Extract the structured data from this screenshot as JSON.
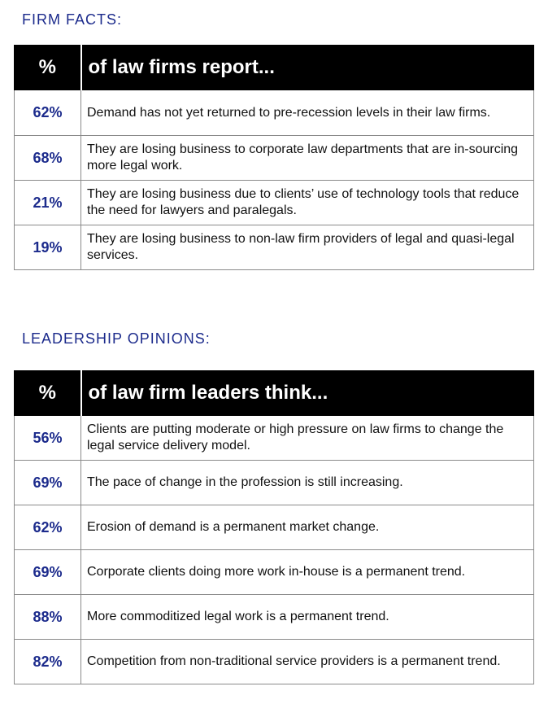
{
  "firm_facts": {
    "heading": "FIRM FACTS:",
    "col_pct": "%",
    "col_text": "of law firms report...",
    "rows": [
      {
        "pct": "62%",
        "text": "Demand has not yet returned to pre-recession levels in their law firms."
      },
      {
        "pct": "68%",
        "text": "They are losing business to corporate law departments that are in-sourcing more legal work."
      },
      {
        "pct": "21%",
        "text": "They are losing business due to clients’ use of technology tools that reduce the need for lawyers and paralegals."
      },
      {
        "pct": "19%",
        "text": "They are losing business to non-law firm providers of legal and quasi-legal services."
      }
    ]
  },
  "leadership_opinions": {
    "heading": "LEADERSHIP OPINIONS:",
    "col_pct": "%",
    "col_text": "of law firm leaders think...",
    "rows": [
      {
        "pct": "56%",
        "text": "Clients are putting moderate or high pressure on law firms to change the legal service delivery model."
      },
      {
        "pct": "69%",
        "text": "The pace of change in the profession is still increasing."
      },
      {
        "pct": "62%",
        "text": "Erosion of demand is a permanent market change."
      },
      {
        "pct": "69%",
        "text": "Corporate clients doing more work in-house is a permanent trend."
      },
      {
        "pct": "88%",
        "text": "More commoditized legal work is a permanent trend."
      },
      {
        "pct": "82%",
        "text": "Competition from non-traditional service providers is a permanent trend."
      }
    ]
  }
}
